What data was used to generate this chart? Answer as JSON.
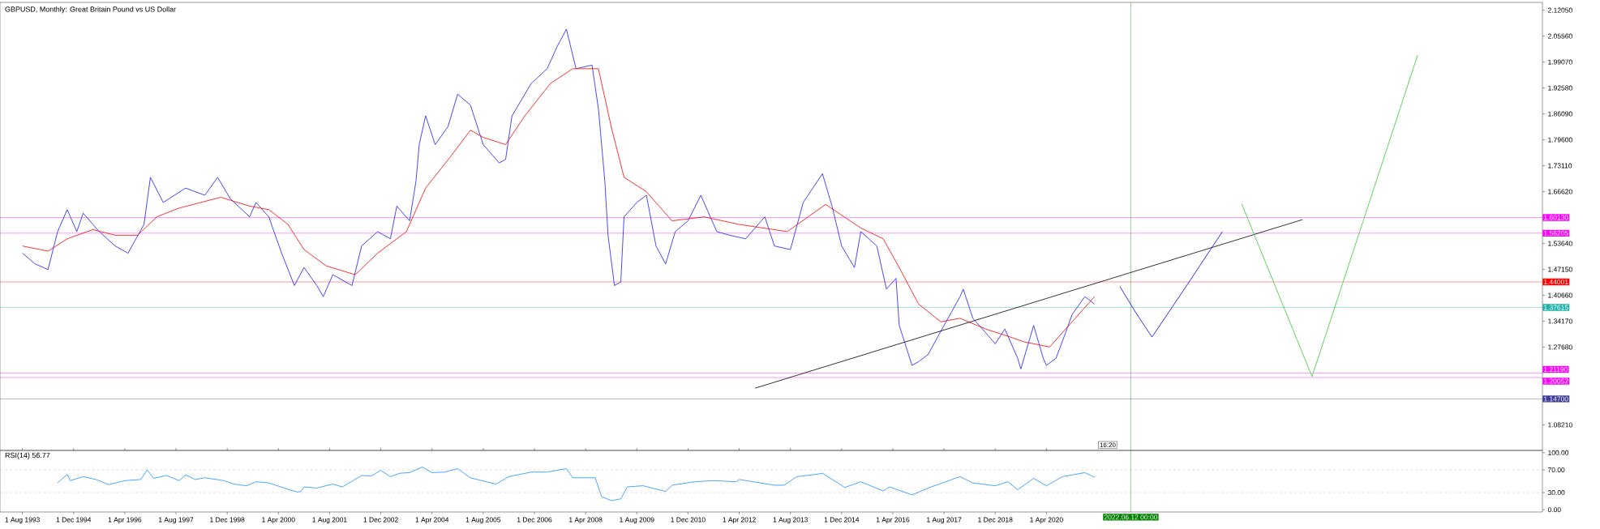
{
  "chart_data": [
    {
      "type": "line",
      "title": "GBPUSD, Monthly:  Great Britain Pound vs US Dollar",
      "xlim": [
        "1993-01",
        "2033-03"
      ],
      "ylim": [
        1.018,
        2.14
      ],
      "tick_labels": "y",
      "yticks": [
        {
          "value": 2.1205,
          "label": "2.12050"
        },
        {
          "value": 2.0556,
          "label": "2.05560"
        },
        {
          "value": 1.9907,
          "label": "1.99070"
        },
        {
          "value": 1.9258,
          "label": "1.92580"
        },
        {
          "value": 1.8609,
          "label": "1.86090"
        },
        {
          "value": 1.796,
          "label": "1.79600"
        },
        {
          "value": 1.7311,
          "label": "1.73110"
        },
        {
          "value": 1.6662,
          "label": "1.66620"
        },
        {
          "value": 1.5364,
          "label": "1.53640"
        },
        {
          "value": 1.4715,
          "label": "1.47150"
        },
        {
          "value": 1.4066,
          "label": "1.40660"
        },
        {
          "value": 1.3417,
          "label": "1.34170"
        },
        {
          "value": 1.2768,
          "label": "1.27680"
        },
        {
          "value": 1.0821,
          "label": "1.08210"
        }
      ],
      "series": [
        {
          "color": "#1a1aff",
          "x": [
            "1993-08",
            "1993-12",
            "1994-04",
            "1994-07",
            "1994-10",
            "1995-01",
            "1995-03",
            "1995-08",
            "1996-01",
            "1996-05",
            "1996-10",
            "1996-12",
            "1997-04",
            "1997-11",
            "1998-05",
            "1998-09",
            "1999-01",
            "1999-07",
            "1999-09",
            "2000-01",
            "2000-05",
            "2000-09",
            "2000-12",
            "2001-04",
            "2001-06",
            "2001-09",
            "2002-03",
            "2002-06",
            "2002-11",
            "2003-03",
            "2003-05",
            "2003-09",
            "2003-11",
            "2003-12",
            "2004-02",
            "2004-05",
            "2004-09",
            "2004-12",
            "2005-04",
            "2005-08",
            "2006-01",
            "2006-03",
            "2006-05",
            "2006-11",
            "2007-04",
            "2007-07",
            "2007-10",
            "2008-01",
            "2008-06",
            "2008-08",
            "2008-10",
            "2008-11",
            "2009-01",
            "2009-03",
            "2009-04",
            "2009-08",
            "2009-11",
            "2010-02",
            "2010-05",
            "2010-08",
            "2010-12",
            "2011-04",
            "2011-09",
            "2012-01",
            "2012-06",
            "2012-12",
            "2013-03",
            "2013-08",
            "2013-12",
            "2014-06",
            "2014-09",
            "2014-12",
            "2015-04",
            "2015-06",
            "2015-11",
            "2016-02",
            "2016-05",
            "2016-06",
            "2016-10",
            "2016-12",
            "2017-03",
            "2017-08",
            "2018-01",
            "2018-02",
            "2018-05",
            "2018-09",
            "2018-12",
            "2019-03",
            "2019-07",
            "2019-08",
            "2019-12",
            "2020-03",
            "2020-04",
            "2020-07",
            "2020-10",
            "2020-12",
            "2021-04",
            "2021-07"
          ],
          "values": [
            1.512,
            1.485,
            1.471,
            1.566,
            1.621,
            1.566,
            1.612,
            1.566,
            1.53,
            1.512,
            1.584,
            1.702,
            1.639,
            1.675,
            1.657,
            1.702,
            1.648,
            1.603,
            1.639,
            1.603,
            1.512,
            1.431,
            1.476,
            1.431,
            1.403,
            1.458,
            1.431,
            1.53,
            1.566,
            1.548,
            1.63,
            1.593,
            1.693,
            1.784,
            1.856,
            1.784,
            1.829,
            1.91,
            1.883,
            1.784,
            1.738,
            1.747,
            1.856,
            1.937,
            1.974,
            2.028,
            2.073,
            1.974,
            1.983,
            1.874,
            1.693,
            1.557,
            1.431,
            1.44,
            1.603,
            1.639,
            1.657,
            1.53,
            1.485,
            1.566,
            1.593,
            1.657,
            1.566,
            1.557,
            1.548,
            1.603,
            1.53,
            1.521,
            1.639,
            1.711,
            1.63,
            1.53,
            1.476,
            1.566,
            1.53,
            1.422,
            1.449,
            1.331,
            1.231,
            1.24,
            1.258,
            1.331,
            1.403,
            1.422,
            1.349,
            1.313,
            1.285,
            1.322,
            1.249,
            1.222,
            1.331,
            1.249,
            1.231,
            1.249,
            1.313,
            1.358,
            1.403,
            1.385
          ]
        },
        {
          "color": "#ff0000",
          "x": [
            "1993-08",
            "1994-04",
            "1994-10",
            "1995-06",
            "1996-01",
            "1996-08",
            "1997-02",
            "1997-09",
            "1998-10",
            "1999-07",
            "2000-01",
            "2000-07",
            "2000-12",
            "2001-07",
            "2002-04",
            "2002-11",
            "2003-08",
            "2004-02",
            "2004-10",
            "2005-04",
            "2005-08",
            "2006-03",
            "2006-09",
            "2007-05",
            "2007-12",
            "2008-01",
            "2008-08",
            "2008-12",
            "2009-04",
            "2009-11",
            "2010-07",
            "2011-05",
            "2012-04",
            "2013-07",
            "2014-07",
            "2015-06",
            "2016-01",
            "2016-06",
            "2016-12",
            "2017-07",
            "2018-01",
            "2018-09",
            "2019-04",
            "2019-09",
            "2020-05",
            "2021-01",
            "2021-07"
          ],
          "values": [
            1.53,
            1.517,
            1.548,
            1.571,
            1.557,
            1.557,
            1.603,
            1.625,
            1.652,
            1.63,
            1.621,
            1.584,
            1.521,
            1.48,
            1.458,
            1.512,
            1.566,
            1.675,
            1.756,
            1.82,
            1.802,
            1.784,
            1.856,
            1.937,
            1.974,
            1.974,
            1.974,
            1.829,
            1.702,
            1.666,
            1.593,
            1.603,
            1.584,
            1.566,
            1.634,
            1.575,
            1.548,
            1.476,
            1.385,
            1.34,
            1.349,
            1.322,
            1.304,
            1.29,
            1.277,
            1.349,
            1.403
          ]
        },
        {
          "color": "#000000",
          "x": [
            "2012-09",
            "2026-12"
          ],
          "values": [
            1.174,
            1.596
          ]
        },
        {
          "color": "#0000ff",
          "x": [
            "2022-03",
            "2022-08",
            "2023-01",
            "2023-12",
            "2024-11"
          ],
          "values": [
            1.428,
            1.362,
            1.302,
            1.433,
            1.566
          ]
        },
        {
          "color": "#33cc33",
          "x": [
            "2025-05",
            "2027-03",
            "2029-12"
          ],
          "values": [
            1.636,
            1.203,
            2.008
          ]
        }
      ],
      "ref_lines": [
        {
          "axis": "y",
          "value": 1.6013,
          "label": "1.60130",
          "color": "#ff00ff"
        },
        {
          "axis": "y",
          "value": 1.56205,
          "label": "1.56205",
          "color": "#ff00ff"
        },
        {
          "axis": "y",
          "value": 1.44001,
          "label": "1.44001",
          "color": "#ff0000"
        },
        {
          "axis": "y",
          "value": 1.37615,
          "label": "1.37615",
          "color": "#20b2aa"
        },
        {
          "axis": "y",
          "value": 1.2119,
          "label": "1.21190",
          "color": "#ff00ff"
        },
        {
          "axis": "y",
          "value": 1.20052,
          "label": "1.20052",
          "color": "#ff00ff"
        },
        {
          "axis": "y",
          "value": 1.147,
          "label": "1.14700",
          "color": "#3c3c96"
        },
        {
          "axis": "x",
          "value": "2022-06-12",
          "color": "#008000"
        }
      ],
      "annotations": [
        "16:20"
      ]
    },
    {
      "type": "line",
      "title": "RSI(14) 56.77",
      "xlim": [
        "1993-01",
        "2033-03"
      ],
      "ylim": [
        -4,
        104
      ],
      "xticks": [
        {
          "value": "1993-08",
          "label": "1 Aug 1993"
        },
        {
          "value": "1994-12",
          "label": "1 Dec 1994"
        },
        {
          "value": "1996-04",
          "label": "1 Apr 1996"
        },
        {
          "value": "1997-08",
          "label": "1 Aug 1997"
        },
        {
          "value": "1998-12",
          "label": "1 Dec 1998"
        },
        {
          "value": "2000-04",
          "label": "1 Apr 2000"
        },
        {
          "value": "2001-08",
          "label": "1 Aug 2001"
        },
        {
          "value": "2002-12",
          "label": "1 Dec 2002"
        },
        {
          "value": "2004-04",
          "label": "1 Apr 2004"
        },
        {
          "value": "2005-08",
          "label": "1 Aug 2005"
        },
        {
          "value": "2006-12",
          "label": "1 Dec 2006"
        },
        {
          "value": "2008-04",
          "label": "1 Apr 2008"
        },
        {
          "value": "2009-08",
          "label": "1 Aug 2009"
        },
        {
          "value": "2010-12",
          "label": "1 Dec 2010"
        },
        {
          "value": "2012-04",
          "label": "1 Apr 2012"
        },
        {
          "value": "2013-08",
          "label": "1 Aug 2013"
        },
        {
          "value": "2014-12",
          "label": "1 Dec 2014"
        },
        {
          "value": "2016-04",
          "label": "1 Apr 2016"
        },
        {
          "value": "2017-08",
          "label": "1 Aug 2017"
        },
        {
          "value": "2018-12",
          "label": "1 Dec 2018"
        },
        {
          "value": "2020-04",
          "label": "1 Apr 2020"
        }
      ],
      "yticks": [
        {
          "value": 100,
          "label": "100.00"
        },
        {
          "value": 70,
          "label": "70.00"
        },
        {
          "value": 30,
          "label": "30.00"
        },
        {
          "value": 0,
          "label": "0.00"
        }
      ],
      "series": [
        {
          "color": "#1e90ff",
          "x": [
            "1994-07",
            "1994-10",
            "1994-11",
            "1995-03",
            "1995-07",
            "1995-11",
            "1996-04",
            "1996-09",
            "1996-11",
            "1997-01",
            "1997-05",
            "1997-09",
            "1997-11",
            "1998-02",
            "1998-05",
            "1998-11",
            "1999-02",
            "1999-06",
            "1999-09",
            "2000-01",
            "2000-08",
            "2000-10",
            "2000-11",
            "2000-12",
            "2001-04",
            "2001-09",
            "2001-12",
            "2002-06",
            "2002-09",
            "2002-12",
            "2003-03",
            "2003-06",
            "2003-09",
            "2004-01",
            "2004-04",
            "2004-08",
            "2004-12",
            "2005-04",
            "2005-09",
            "2005-12",
            "2006-04",
            "2006-11",
            "2007-04",
            "2007-10",
            "2007-12",
            "2008-07",
            "2008-09",
            "2008-12",
            "2009-03",
            "2009-05",
            "2009-10",
            "2010-05",
            "2010-07",
            "2011-02",
            "2011-08",
            "2012-03",
            "2012-04",
            "2013-03",
            "2013-06",
            "2013-10",
            "2014-04",
            "2014-06",
            "2015-01",
            "2015-06",
            "2016-01",
            "2016-03",
            "2016-10",
            "2017-04",
            "2018-01",
            "2018-05",
            "2018-12",
            "2019-04",
            "2019-07",
            "2019-12",
            "2020-04",
            "2020-09",
            "2021-04",
            "2021-07"
          ],
          "values": [
            47,
            62,
            51,
            58,
            53,
            44,
            51,
            53,
            70,
            55,
            60,
            51,
            61,
            53,
            56,
            51,
            45,
            42,
            49,
            47,
            34,
            31,
            32,
            40,
            38,
            45,
            40,
            60,
            59,
            69,
            58,
            64,
            65,
            75,
            65,
            66,
            72,
            56,
            49,
            45,
            58,
            66,
            66,
            72,
            56,
            56,
            23,
            16,
            19,
            40,
            42,
            32,
            43,
            49,
            51,
            49,
            53,
            43,
            43,
            58,
            62,
            64,
            39,
            49,
            33,
            40,
            26,
            40,
            58,
            47,
            42,
            49,
            35,
            55,
            42,
            58,
            65,
            57
          ]
        }
      ],
      "ref_lines": [
        {
          "axis": "y",
          "value": 70,
          "color": "#b4b4b4",
          "line_style": "dashed"
        },
        {
          "axis": "y",
          "value": 30,
          "color": "#b4b4b4",
          "line_style": "dashed"
        },
        {
          "axis": "x",
          "value": "2022-06-12",
          "label": "2022.06.12 00:00",
          "color": "#008000"
        }
      ]
    }
  ]
}
